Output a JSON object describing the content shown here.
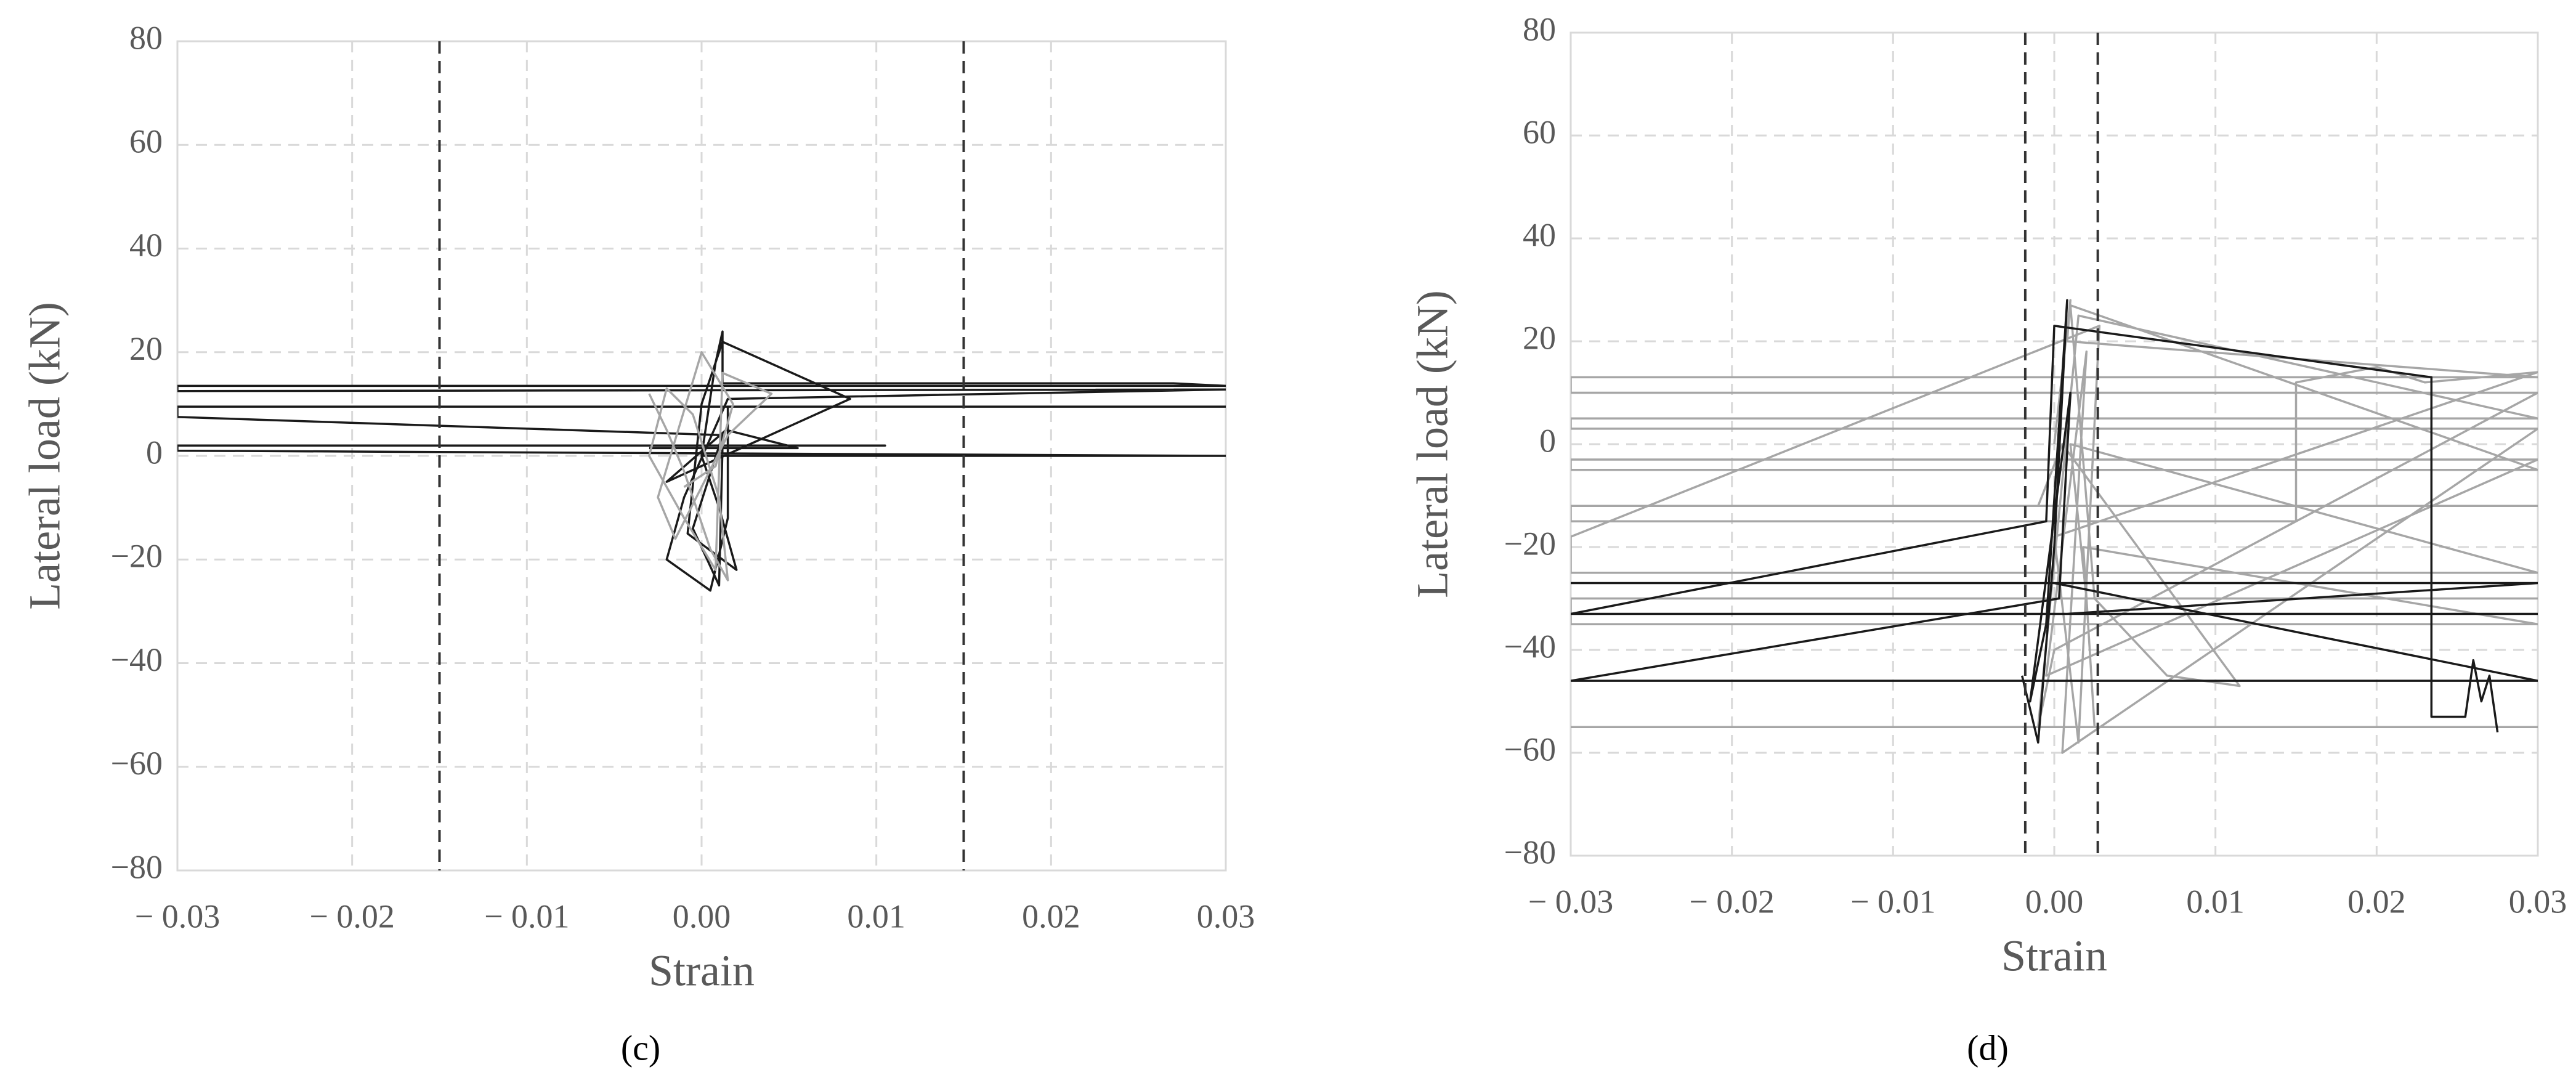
{
  "chart_data": [
    {
      "type": "line",
      "panel_label": "(c)",
      "x_label": "Strain",
      "y_label": "Lateral load (kN)",
      "xlim": [
        -0.03,
        0.03
      ],
      "ylim": [
        -80,
        80
      ],
      "grid": true,
      "xticks": [
        {
          "value": -0.03,
          "label": "− 0.03"
        },
        {
          "value": -0.02,
          "label": "− 0.02"
        },
        {
          "value": -0.01,
          "label": "− 0.01"
        },
        {
          "value": 0,
          "label": "0.00"
        },
        {
          "value": 0.01,
          "label": "0.01"
        },
        {
          "value": 0.02,
          "label": "0.02"
        },
        {
          "value": 0.03,
          "label": "0.03"
        }
      ],
      "yticks": [
        {
          "value": -80,
          "label": "−80"
        },
        {
          "value": -60,
          "label": "−60"
        },
        {
          "value": -40,
          "label": "−40"
        },
        {
          "value": -20,
          "label": "−20"
        },
        0,
        20,
        40,
        60,
        80
      ],
      "vlines": [
        -0.015,
        0.015
      ],
      "series": [
        {
          "color": "#1a1a1a",
          "x": [
            0,
            0.0008,
            0.0012,
            0.0012,
            0.027,
            0.03,
            -0.03,
            -0.03,
            0.03,
            0.0015,
            -0.001,
            -0.002,
            0.0005,
            0.0015,
            0.0015,
            0.03,
            -0.03,
            -0.03,
            0.0012,
            -0.0005,
            0.001,
            0.0012,
            0.0105,
            -0.03,
            -0.03,
            0.03,
            0.0,
            0.001,
            0.002,
            -0.0008,
            0.0,
            0.0012,
            0.0085,
            -0.002,
            0.0014,
            0.0055,
            -0.003
          ],
          "values": [
            0,
            18,
            24,
            14,
            14,
            13.5,
            13.5,
            12.5,
            12.8,
            11,
            -8,
            -20,
            -26,
            -12,
            9.5,
            9.5,
            9.5,
            7.5,
            4,
            -14,
            -25,
            2,
            2,
            2,
            1,
            0,
            0,
            -10,
            -22,
            -15,
            10,
            22,
            11,
            -5,
            5,
            1.5,
            1.5
          ]
        },
        {
          "color": "#a6a6a6",
          "x": [
            -0.003,
            -0.002,
            -0.001,
            0.0005,
            0.0015,
            0.001,
            -0.0005,
            -0.002,
            -0.003,
            -0.001,
            0.0008,
            0.0012,
            0.004,
            0.0015,
            0.0,
            -0.0015,
            -0.0025,
            0.0,
            0.0018,
            0.0008,
            -0.001
          ],
          "values": [
            12,
            5,
            -3,
            -18,
            -24,
            -8,
            8,
            13,
            0,
            -12,
            -22,
            16,
            12,
            4,
            -6,
            -16,
            -8,
            20,
            10,
            -2,
            -6
          ]
        }
      ]
    },
    {
      "type": "line",
      "panel_label": "(d)",
      "x_label": "Strain",
      "y_label": "Lateral load (kN)",
      "xlim": [
        -0.03,
        0.03
      ],
      "ylim": [
        -80,
        80
      ],
      "grid": true,
      "xticks": [
        {
          "value": -0.03,
          "label": "− 0.03"
        },
        {
          "value": -0.02,
          "label": "− 0.02"
        },
        {
          "value": -0.01,
          "label": "− 0.01"
        },
        {
          "value": 0,
          "label": "0.00"
        },
        {
          "value": 0.01,
          "label": "0.01"
        },
        {
          "value": 0.02,
          "label": "0.02"
        },
        {
          "value": 0.03,
          "label": "0.03"
        }
      ],
      "yticks": [
        {
          "value": -80,
          "label": "−80"
        },
        {
          "value": -60,
          "label": "−60"
        },
        {
          "value": -40,
          "label": "−40"
        },
        {
          "value": -20,
          "label": "−20"
        },
        0,
        20,
        40,
        60,
        80
      ],
      "vlines": [
        -0.0018,
        0.0027
      ],
      "series": [
        {
          "color": "#a6a6a6",
          "x": [
            0,
            0.001,
            0.0008,
            0.03,
            -0.03,
            -0.03,
            0.03,
            0.0,
            -0.001,
            0.0015,
            0.03,
            -0.03,
            -0.03,
            0.03,
            0.0005,
            0.002,
            -0.0005,
            0.03,
            -0.03,
            -0.03,
            0.03,
            0.001,
            0.0025,
            0.007,
            0.0115,
            0.0005,
            -0.001,
            0.03,
            -0.03,
            -0.03,
            0.015,
            0.015,
            0.02,
            0.023,
            0.03,
            0.0,
            0.0015,
            0.0028,
            -0.03,
            -0.03,
            0.03,
            0.001,
            0.002,
            0.03,
            -0.03,
            -0.03,
            0.03,
            0.0018,
            0.0025,
            0.03,
            -0.03
          ],
          "values": [
            0,
            28,
            20,
            13,
            13,
            10,
            10,
            -40,
            -55,
            25,
            5,
            5,
            3,
            3,
            -60,
            18,
            -45,
            -3,
            -3,
            -5,
            -5,
            27,
            -30,
            -45,
            -47,
            0,
            -12,
            -12,
            -12,
            -15,
            -15,
            12,
            15,
            12,
            14,
            -18,
            -58,
            23,
            -18,
            -25,
            -25,
            0,
            -30,
            -30,
            -30,
            -35,
            -35,
            -20,
            -55,
            -55,
            -55
          ]
        },
        {
          "color": "#1a1a1a",
          "x": [
            -0.002,
            -0.001,
            0.0,
            0.0008,
            -0.0005,
            -0.0015,
            0.001,
            0.0003,
            -0.03,
            0.03,
            0.0,
            0.0012,
            -0.03,
            0.03,
            0.0008,
            0.03,
            -0.03,
            -0.0005,
            0.0,
            0.0234,
            0.0234,
            0.0255,
            0.026,
            0.0265,
            0.027,
            0.0275
          ],
          "values": [
            -45,
            -58,
            -20,
            28,
            -35,
            -50,
            10,
            -30,
            -46,
            -46,
            -27,
            -27,
            -27,
            -27,
            -33,
            -33,
            -33,
            -15,
            23,
            13,
            -53,
            -53,
            -42,
            -50,
            -45,
            -56
          ]
        }
      ]
    }
  ]
}
